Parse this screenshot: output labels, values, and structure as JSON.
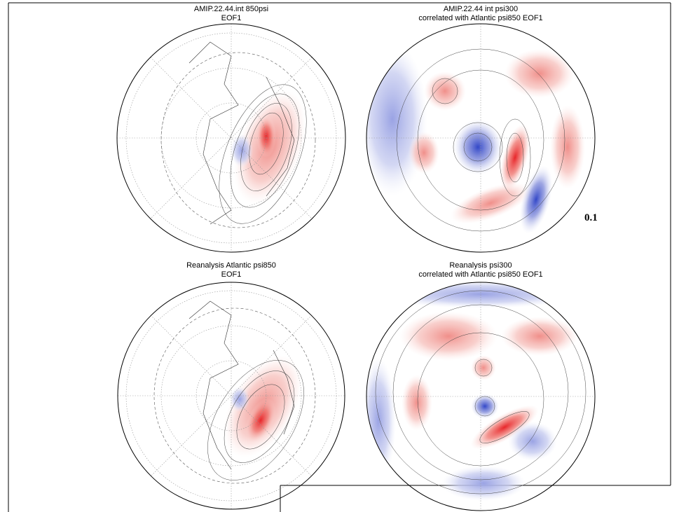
{
  "panels": [
    {
      "title": "AMIP.22.44.int 850psi",
      "subtitle": "EOF1"
    },
    {
      "title": "AMIP.22.44 int psi300",
      "subtitle": "correlated with Atlantic psi850 EOF1"
    },
    {
      "title": "Reanalysis Atlantic psi850",
      "subtitle": "EOF1"
    },
    {
      "title": "Reanalysis psi300",
      "subtitle": "correlated with Atlantic psi850 EOF1"
    }
  ],
  "contour_interval_label": "0.1"
}
